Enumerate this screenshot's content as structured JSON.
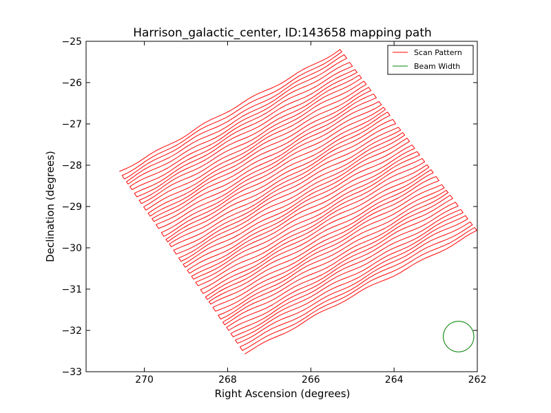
{
  "chart_data": {
    "type": "line",
    "title": "Harrison_galactic_center, ID:143658 mapping path",
    "xlabel": "Right Ascension (degrees)",
    "ylabel": "Declination (degrees)",
    "xlim": [
      271.4,
      262.0
    ],
    "ylim": [
      -33,
      -25
    ],
    "x_ticks": [
      270,
      268,
      266,
      264,
      262
    ],
    "x_tick_labels": [
      "270",
      "268",
      "266",
      "264",
      "262"
    ],
    "y_ticks": [
      -25,
      -26,
      -27,
      -28,
      -29,
      -30,
      -31,
      -32,
      -33
    ],
    "y_tick_labels": [
      "−25",
      "−26",
      "−27",
      "−28",
      "−29",
      "−30",
      "−31",
      "−32",
      "−33"
    ],
    "grid": false,
    "legend_position": "top-right",
    "series": [
      {
        "name": "Scan Pattern",
        "color": "#ff0000",
        "style": "raster-scan",
        "scan_count": 58,
        "first_scan": {
          "start": [
            270.6,
            -28.15
          ],
          "end": [
            265.3,
            -25.2
          ]
        },
        "last_scan": {
          "start": [
            267.6,
            -32.55
          ],
          "end": [
            262.0,
            -29.6
          ]
        }
      },
      {
        "name": "Beam Width",
        "color": "#008000",
        "style": "circle",
        "center": [
          262.45,
          -32.15
        ],
        "radius_deg": 0.37
      }
    ]
  }
}
